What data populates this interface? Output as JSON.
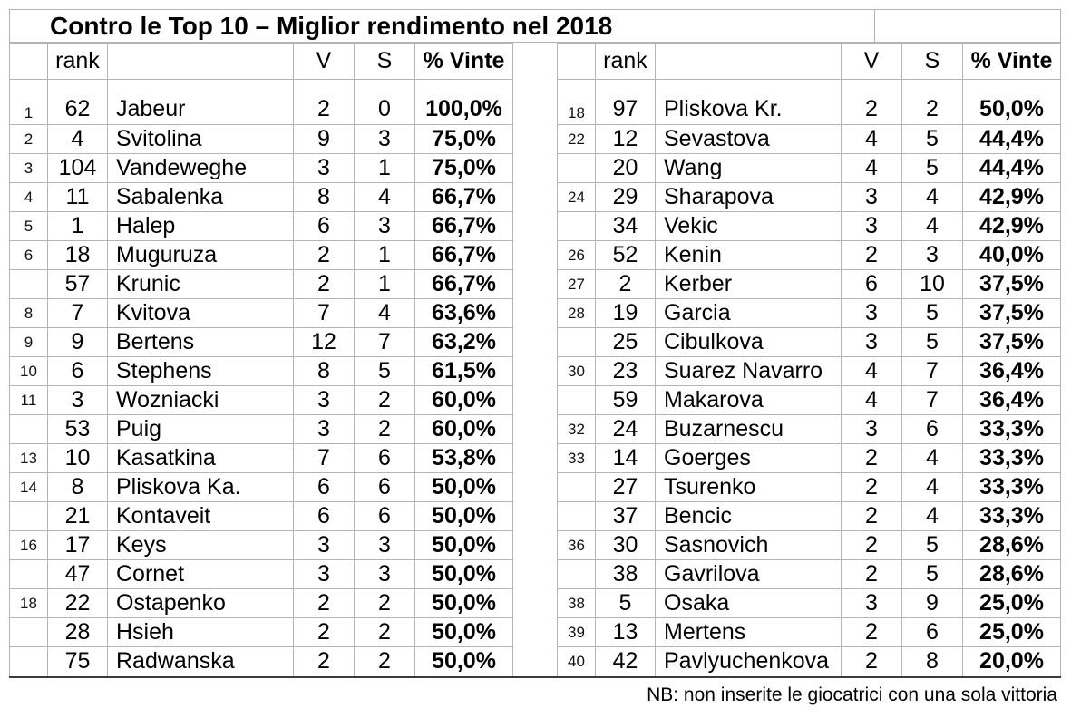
{
  "page": {
    "title": "Contro le Top 10 – Miglior rendimento nel 2018",
    "footer_note": "NB: non inserite le giocatrici con una sola vittoria"
  },
  "columns": {
    "pos": "",
    "rank": "rank",
    "player": "",
    "v": "V",
    "s": "S",
    "pct": "% Vinte"
  },
  "chart_data": {
    "type": "table",
    "title": "Contro le Top 10 – Miglior rendimento nel 2018",
    "note": "NB: non inserite le giocatrici con una sola vittoria",
    "columns": [
      "pos",
      "rank",
      "player",
      "V",
      "S",
      "% Vinte"
    ],
    "left_table_rows": [
      {
        "pos": "1",
        "rank": "62",
        "player": "Jabeur",
        "v": "2",
        "s": "0",
        "pct": "100,0%"
      },
      {
        "pos": "2",
        "rank": "4",
        "player": "Svitolina",
        "v": "9",
        "s": "3",
        "pct": "75,0%"
      },
      {
        "pos": "3",
        "rank": "104",
        "player": "Vandeweghe",
        "v": "3",
        "s": "1",
        "pct": "75,0%"
      },
      {
        "pos": "4",
        "rank": "11",
        "player": "Sabalenka",
        "v": "8",
        "s": "4",
        "pct": "66,7%"
      },
      {
        "pos": "5",
        "rank": "1",
        "player": "Halep",
        "v": "6",
        "s": "3",
        "pct": "66,7%"
      },
      {
        "pos": "6",
        "rank": "18",
        "player": "Muguruza",
        "v": "2",
        "s": "1",
        "pct": "66,7%"
      },
      {
        "pos": "",
        "rank": "57",
        "player": "Krunic",
        "v": "2",
        "s": "1",
        "pct": "66,7%"
      },
      {
        "pos": "8",
        "rank": "7",
        "player": "Kvitova",
        "v": "7",
        "s": "4",
        "pct": "63,6%"
      },
      {
        "pos": "9",
        "rank": "9",
        "player": "Bertens",
        "v": "12",
        "s": "7",
        "pct": "63,2%"
      },
      {
        "pos": "10",
        "rank": "6",
        "player": "Stephens",
        "v": "8",
        "s": "5",
        "pct": "61,5%"
      },
      {
        "pos": "11",
        "rank": "3",
        "player": "Wozniacki",
        "v": "3",
        "s": "2",
        "pct": "60,0%"
      },
      {
        "pos": "",
        "rank": "53",
        "player": "Puig",
        "v": "3",
        "s": "2",
        "pct": "60,0%"
      },
      {
        "pos": "13",
        "rank": "10",
        "player": "Kasatkina",
        "v": "7",
        "s": "6",
        "pct": "53,8%"
      },
      {
        "pos": "14",
        "rank": "8",
        "player": "Pliskova Ka.",
        "v": "6",
        "s": "6",
        "pct": "50,0%"
      },
      {
        "pos": "",
        "rank": "21",
        "player": "Kontaveit",
        "v": "6",
        "s": "6",
        "pct": "50,0%"
      },
      {
        "pos": "16",
        "rank": "17",
        "player": "Keys",
        "v": "3",
        "s": "3",
        "pct": "50,0%"
      },
      {
        "pos": "",
        "rank": "47",
        "player": "Cornet",
        "v": "3",
        "s": "3",
        "pct": "50,0%"
      },
      {
        "pos": "18",
        "rank": "22",
        "player": "Ostapenko",
        "v": "2",
        "s": "2",
        "pct": "50,0%"
      },
      {
        "pos": "",
        "rank": "28",
        "player": "Hsieh",
        "v": "2",
        "s": "2",
        "pct": "50,0%"
      },
      {
        "pos": "",
        "rank": "75",
        "player": "Radwanska",
        "v": "2",
        "s": "2",
        "pct": "50,0%"
      }
    ],
    "right_table_rows": [
      {
        "pos": "18",
        "rank": "97",
        "player": "Pliskova Kr.",
        "v": "2",
        "s": "2",
        "pct": "50,0%"
      },
      {
        "pos": "22",
        "rank": "12",
        "player": "Sevastova",
        "v": "4",
        "s": "5",
        "pct": "44,4%"
      },
      {
        "pos": "",
        "rank": "20",
        "player": "Wang",
        "v": "4",
        "s": "5",
        "pct": "44,4%"
      },
      {
        "pos": "24",
        "rank": "29",
        "player": "Sharapova",
        "v": "3",
        "s": "4",
        "pct": "42,9%"
      },
      {
        "pos": "",
        "rank": "34",
        "player": "Vekic",
        "v": "3",
        "s": "4",
        "pct": "42,9%"
      },
      {
        "pos": "26",
        "rank": "52",
        "player": "Kenin",
        "v": "2",
        "s": "3",
        "pct": "40,0%"
      },
      {
        "pos": "27",
        "rank": "2",
        "player": "Kerber",
        "v": "6",
        "s": "10",
        "pct": "37,5%"
      },
      {
        "pos": "28",
        "rank": "19",
        "player": "Garcia",
        "v": "3",
        "s": "5",
        "pct": "37,5%"
      },
      {
        "pos": "",
        "rank": "25",
        "player": "Cibulkova",
        "v": "3",
        "s": "5",
        "pct": "37,5%"
      },
      {
        "pos": "30",
        "rank": "23",
        "player": "Suarez Navarro",
        "v": "4",
        "s": "7",
        "pct": "36,4%"
      },
      {
        "pos": "",
        "rank": "59",
        "player": "Makarova",
        "v": "4",
        "s": "7",
        "pct": "36,4%"
      },
      {
        "pos": "32",
        "rank": "24",
        "player": "Buzarnescu",
        "v": "3",
        "s": "6",
        "pct": "33,3%"
      },
      {
        "pos": "33",
        "rank": "14",
        "player": "Goerges",
        "v": "2",
        "s": "4",
        "pct": "33,3%"
      },
      {
        "pos": "",
        "rank": "27",
        "player": "Tsurenko",
        "v": "2",
        "s": "4",
        "pct": "33,3%"
      },
      {
        "pos": "",
        "rank": "37",
        "player": "Bencic",
        "v": "2",
        "s": "4",
        "pct": "33,3%"
      },
      {
        "pos": "36",
        "rank": "30",
        "player": "Sasnovich",
        "v": "2",
        "s": "5",
        "pct": "28,6%"
      },
      {
        "pos": "",
        "rank": "38",
        "player": "Gavrilova",
        "v": "2",
        "s": "5",
        "pct": "28,6%"
      },
      {
        "pos": "38",
        "rank": "5",
        "player": "Osaka",
        "v": "3",
        "s": "9",
        "pct": "25,0%"
      },
      {
        "pos": "39",
        "rank": "13",
        "player": "Mertens",
        "v": "2",
        "s": "6",
        "pct": "25,0%"
      },
      {
        "pos": "40",
        "rank": "42",
        "player": "Pavlyuchenkova",
        "v": "2",
        "s": "8",
        "pct": "20,0%"
      }
    ]
  }
}
